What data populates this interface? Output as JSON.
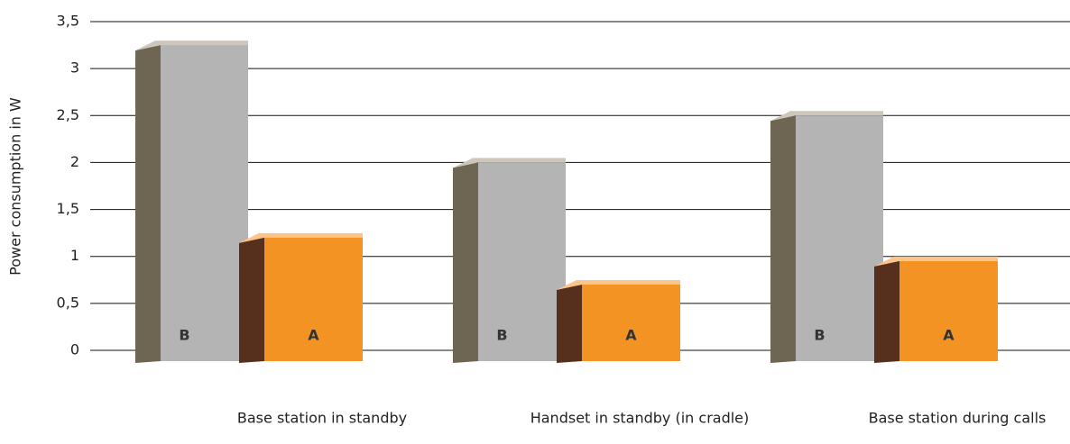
{
  "chart_data": {
    "type": "bar3d",
    "ylabel": "Power consumption in W",
    "categories": [
      "Base station in standby",
      "Handset in standby (in cradle)",
      "Base station during calls"
    ],
    "series": [
      {
        "name": "B",
        "color": "#b4b4b4",
        "values": [
          3.25,
          2,
          2.5
        ]
      },
      {
        "name": "A",
        "color": "#f39323",
        "values": [
          1.2,
          0.7,
          0.95
        ]
      }
    ],
    "ylim": [
      0,
      3.5
    ],
    "yticks": [
      0,
      {
        "value": 0.5,
        "label": "0,5"
      },
      1,
      {
        "value": 1.5,
        "label": "1,5"
      },
      2,
      {
        "value": 2.5,
        "label": "2,5"
      },
      3,
      {
        "value": 3.5,
        "label": "3,5"
      }
    ],
    "grid": true
  }
}
